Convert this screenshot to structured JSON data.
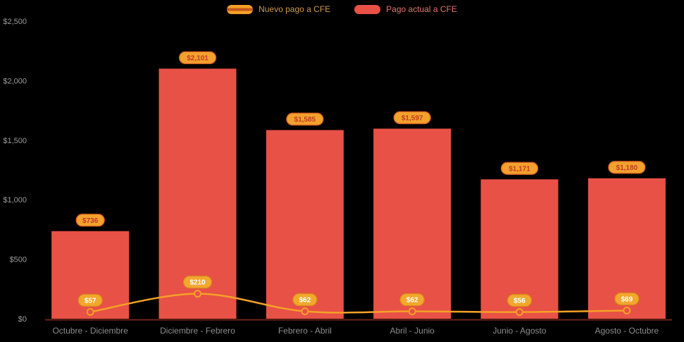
{
  "legend": {
    "items": [
      {
        "label": "Nuevo pago a CFE",
        "series": "line",
        "label_color": "#cf9a4e"
      },
      {
        "label": "Pago actual a CFE",
        "series": "bar",
        "label_color": "#e0756b"
      }
    ]
  },
  "colors": {
    "background": "#000000",
    "bar": "#e85146",
    "line": "#f4a127",
    "line_swatch_stripe": "#c4561d",
    "bar_label_bg": "#f2a22c",
    "bar_label_text": "#c43a2a",
    "bar_label_border": "#d25b22",
    "line_label_bg": "#f2a82c",
    "line_label_text": "#ffffff",
    "line_label_border": "#d98a1c",
    "point_fill": "#e85146",
    "axis_text": "#9b9b9b",
    "category_text": "#8d8d8d",
    "baseline": "#6e2418"
  },
  "chart_data": {
    "type": "bar",
    "title": "",
    "xlabel": "",
    "ylabel": "",
    "grid": false,
    "legend_position": "top",
    "ylim": [
      0,
      2500
    ],
    "yticks": [
      0,
      500,
      1000,
      1500,
      2000,
      2500
    ],
    "ytick_labels": [
      "$0",
      "$500",
      "$1,000",
      "$1,500",
      "$2,000",
      "$2,500"
    ],
    "categories": [
      "Octubre - Diciembre",
      "Diciembre - Febrero",
      "Febrero - Abril",
      "Abril - Junio",
      "Junio - Agosto",
      "Agosto - Octubre"
    ],
    "series": [
      {
        "name": "Nuevo pago a CFE",
        "type": "line",
        "values": [
          57,
          210,
          62,
          62,
          56,
          69
        ],
        "labels": [
          "$57",
          "$210",
          "$62",
          "$62",
          "$56",
          "$69"
        ]
      },
      {
        "name": "Pago actual a CFE",
        "type": "bar",
        "values": [
          736,
          2101,
          1585,
          1597,
          1171,
          1180
        ],
        "labels": [
          "$736",
          "$2,101",
          "$1,585",
          "$1,597",
          "$1,171",
          "$1,180"
        ]
      }
    ]
  }
}
